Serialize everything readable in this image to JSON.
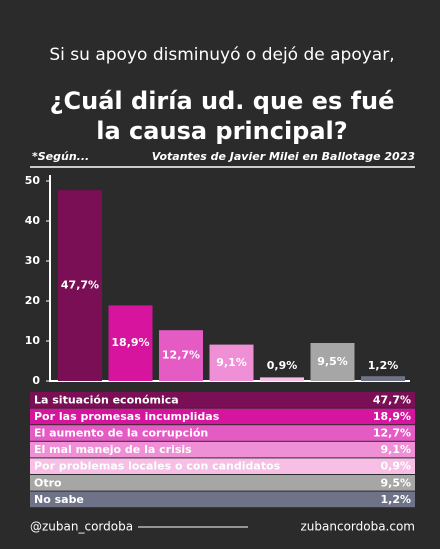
{
  "chart_data": {
    "type": "bar",
    "title_lines": [
      "Si su apoyo disminuyó o dejó de apoyar,",
      "¿Cuál diría ud. que es fué",
      "la causa principal?"
    ],
    "note": "*Según...",
    "subtitle": "Votantes de Javier Milei en Ballotage 2023",
    "categories": [
      "La situación económica",
      "Por las promesas incumplidas",
      "El aumento de la corrupción",
      "El mal manejo de la crisis",
      "Por problemas locales o con candidatos",
      "Otro",
      "No sabe"
    ],
    "values": [
      47.7,
      18.9,
      12.7,
      9.1,
      0.9,
      9.5,
      1.2
    ],
    "value_labels": [
      "47,7%",
      "18,9%",
      "12,7%",
      "9,1%",
      "0,9%",
      "9,5%",
      "1,2%"
    ],
    "colors": [
      "#7b0f55",
      "#d6149d",
      "#e35bc3",
      "#ef8fd6",
      "#f7bfe6",
      "#a6a6a6",
      "#6f7388"
    ],
    "ylim": [
      0,
      50
    ],
    "yticks": [
      0,
      10,
      20,
      30,
      40,
      50
    ],
    "footer_left": "@zuban_cordoba",
    "footer_right": "zubancordoba.com"
  }
}
